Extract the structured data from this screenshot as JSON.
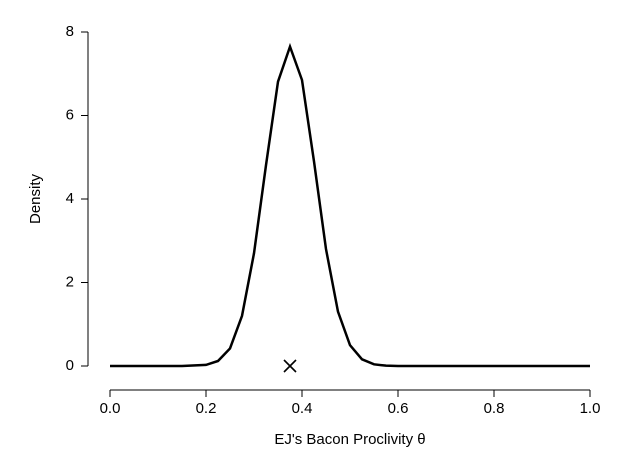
{
  "chart_data": {
    "type": "line",
    "xlabel": "EJ's Bacon Proclivity θ",
    "ylabel": "Density",
    "x": [
      0,
      0.1,
      0.15,
      0.2,
      0.225,
      0.25,
      0.275,
      0.3,
      0.325,
      0.35,
      0.375,
      0.4,
      0.425,
      0.45,
      0.475,
      0.5,
      0.525,
      0.55,
      0.575,
      0.6,
      0.7,
      0.8,
      0.9,
      1
    ],
    "series": [
      {
        "color": "#000000",
        "values": [
          0,
          0,
          0,
          0.026,
          0.12,
          0.42,
          1.2,
          2.7,
          4.81,
          6.81,
          7.65,
          6.85,
          4.9,
          2.8,
          1.3,
          0.5,
          0.16,
          0.04,
          0.008,
          0,
          0,
          0,
          0,
          0
        ]
      }
    ],
    "marker": {
      "x": 0.375,
      "y": 0
    },
    "xlim": [
      0,
      1
    ],
    "xticks": [
      {
        "value": 0,
        "label": "0.0"
      },
      0.2,
      0.4,
      0.6,
      0.8,
      {
        "value": 1,
        "label": "1.0"
      }
    ],
    "ylim": [
      0,
      8
    ],
    "yticks": [
      0,
      2,
      4,
      6,
      8
    ]
  }
}
